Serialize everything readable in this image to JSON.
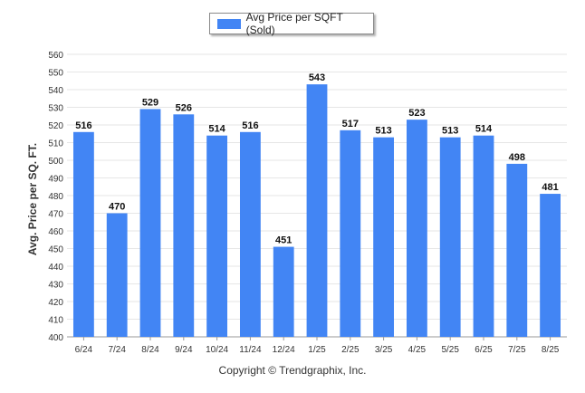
{
  "chart_data": {
    "type": "bar",
    "categories": [
      "6/24",
      "7/24",
      "8/24",
      "9/24",
      "10/24",
      "11/24",
      "12/24",
      "1/25",
      "2/25",
      "3/25",
      "4/25",
      "5/25",
      "6/25",
      "7/25",
      "8/25"
    ],
    "series": [
      {
        "name": "Avg Price per SQFT (Sold)",
        "values": [
          516,
          470,
          529,
          526,
          514,
          516,
          451,
          543,
          517,
          513,
          523,
          513,
          514,
          498,
          481
        ]
      }
    ],
    "title": "",
    "xlabel": "",
    "ylabel": "Avg. Price per SQ. FT.",
    "ylim": [
      400,
      560
    ],
    "yticks": [
      400,
      410,
      420,
      430,
      440,
      450,
      460,
      470,
      480,
      490,
      500,
      510,
      520,
      530,
      540,
      550,
      560
    ],
    "grid": true,
    "legend_position": "top-center",
    "bar_color": "#4285f4",
    "data_labels": true
  },
  "footer": {
    "copyright": "Copyright © Trendgraphix, Inc."
  }
}
